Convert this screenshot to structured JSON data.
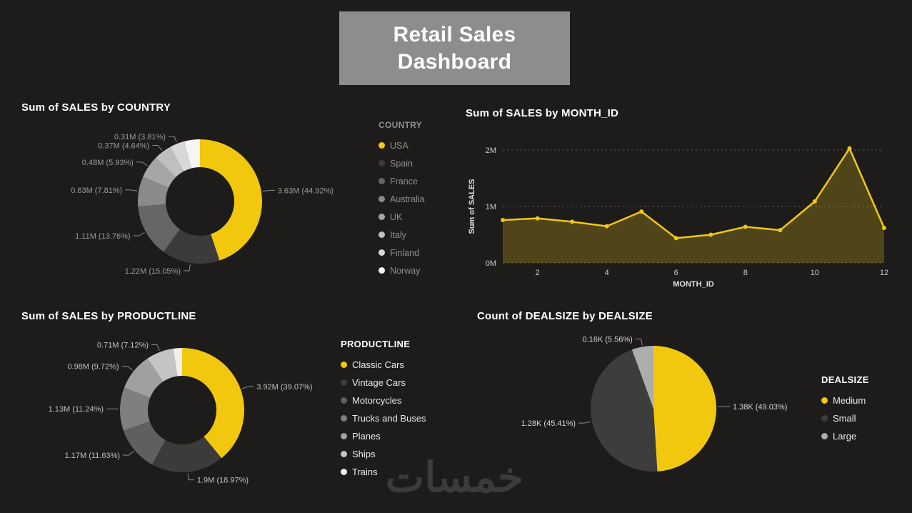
{
  "title": {
    "line1": "Retail Sales",
    "line2": "Dashboard"
  },
  "watermark": "خمسات",
  "colors": {
    "background": "#1d1c1b",
    "accent": "#F2C80F",
    "title_box": "#8d8d8d"
  },
  "chart_data": [
    {
      "id": "country",
      "type": "donut",
      "title": "Sum of SALES by COUNTRY",
      "legend_title": "COUNTRY",
      "legend_position": "right",
      "slices": [
        {
          "label": "USA",
          "value_label": "3.63M (44.92%)",
          "pct": 44.92,
          "color": "#F2C80F"
        },
        {
          "label": "Spain",
          "value_label": "1.22M (15.05%)",
          "pct": 15.05,
          "color": "#3b3b3b"
        },
        {
          "label": "France",
          "value_label": "1.11M (13.76%)",
          "pct": 13.76,
          "color": "#666666"
        },
        {
          "label": "Australia",
          "value_label": "0.63M (7.81%)",
          "pct": 7.81,
          "color": "#8a8a8a"
        },
        {
          "label": "UK",
          "value_label": "0.48M (5.93%)",
          "pct": 5.93,
          "color": "#a6a6a6"
        },
        {
          "label": "Italy",
          "value_label": "0.37M (4.64%)",
          "pct": 4.64,
          "color": "#bfbfbf"
        },
        {
          "label": "Finland",
          "value_label": "0.31M (3.81%)",
          "pct": 3.81,
          "color": "#d8d8d8"
        },
        {
          "label": "Norway",
          "value_label": "",
          "pct": 4.08,
          "color": "#f5f5f5"
        }
      ]
    },
    {
      "id": "month",
      "type": "area-line",
      "title": "Sum of SALES by MONTH_ID",
      "xlabel": "MONTH_ID",
      "ylabel": "Sum of SALES",
      "x": [
        1,
        2,
        3,
        4,
        5,
        6,
        7,
        8,
        9,
        10,
        11,
        12
      ],
      "values_millions": [
        0.76,
        0.79,
        0.73,
        0.65,
        0.91,
        0.44,
        0.5,
        0.64,
        0.58,
        1.09,
        2.03,
        0.62
      ],
      "y_ticks": [
        {
          "value": 0,
          "label": "0M"
        },
        {
          "value": 1,
          "label": "1M"
        },
        {
          "value": 2,
          "label": "2M"
        }
      ],
      "x_ticks": [
        2,
        4,
        6,
        8,
        10,
        12
      ],
      "ylim": [
        0,
        2.05
      ],
      "line_color": "#F2C80F",
      "grid": "dotted-horizontal"
    },
    {
      "id": "productline",
      "type": "donut",
      "title": "Sum of SALES by PRODUCTLINE",
      "legend_title": "PRODUCTLINE",
      "legend_position": "right",
      "slices": [
        {
          "label": "Classic Cars",
          "value_label": "3.92M (39.07%)",
          "pct": 39.07,
          "color": "#F2C80F"
        },
        {
          "label": "Vintage Cars",
          "value_label": "1.9M (18.97%)",
          "pct": 18.97,
          "color": "#3b3b3b"
        },
        {
          "label": "Motorcycles",
          "value_label": "1.17M (11.63%)",
          "pct": 11.63,
          "color": "#5f5f5f"
        },
        {
          "label": "Trucks and Buses",
          "value_label": "1.13M (11.24%)",
          "pct": 11.24,
          "color": "#7f7f7f"
        },
        {
          "label": "Planes",
          "value_label": "0.98M (9.72%)",
          "pct": 9.72,
          "color": "#a0a0a0"
        },
        {
          "label": "Ships",
          "value_label": "0.71M (7.12%)",
          "pct": 7.12,
          "color": "#c4c4c4"
        },
        {
          "label": "Trains",
          "value_label": "",
          "pct": 2.25,
          "color": "#f0f0f0"
        }
      ]
    },
    {
      "id": "dealsize",
      "type": "pie",
      "title": "Count of DEALSIZE by DEALSIZE",
      "legend_title": "DEALSIZE",
      "legend_position": "right",
      "slices": [
        {
          "label": "Medium",
          "value_label": "1.38K (49.03%)",
          "pct": 49.03,
          "color": "#F2C80F"
        },
        {
          "label": "Small",
          "value_label": "1.28K (45.41%)",
          "pct": 45.41,
          "color": "#3d3d3d"
        },
        {
          "label": "Large",
          "value_label": "0.16K (5.56%)",
          "pct": 5.56,
          "color": "#adadad"
        }
      ]
    }
  ]
}
